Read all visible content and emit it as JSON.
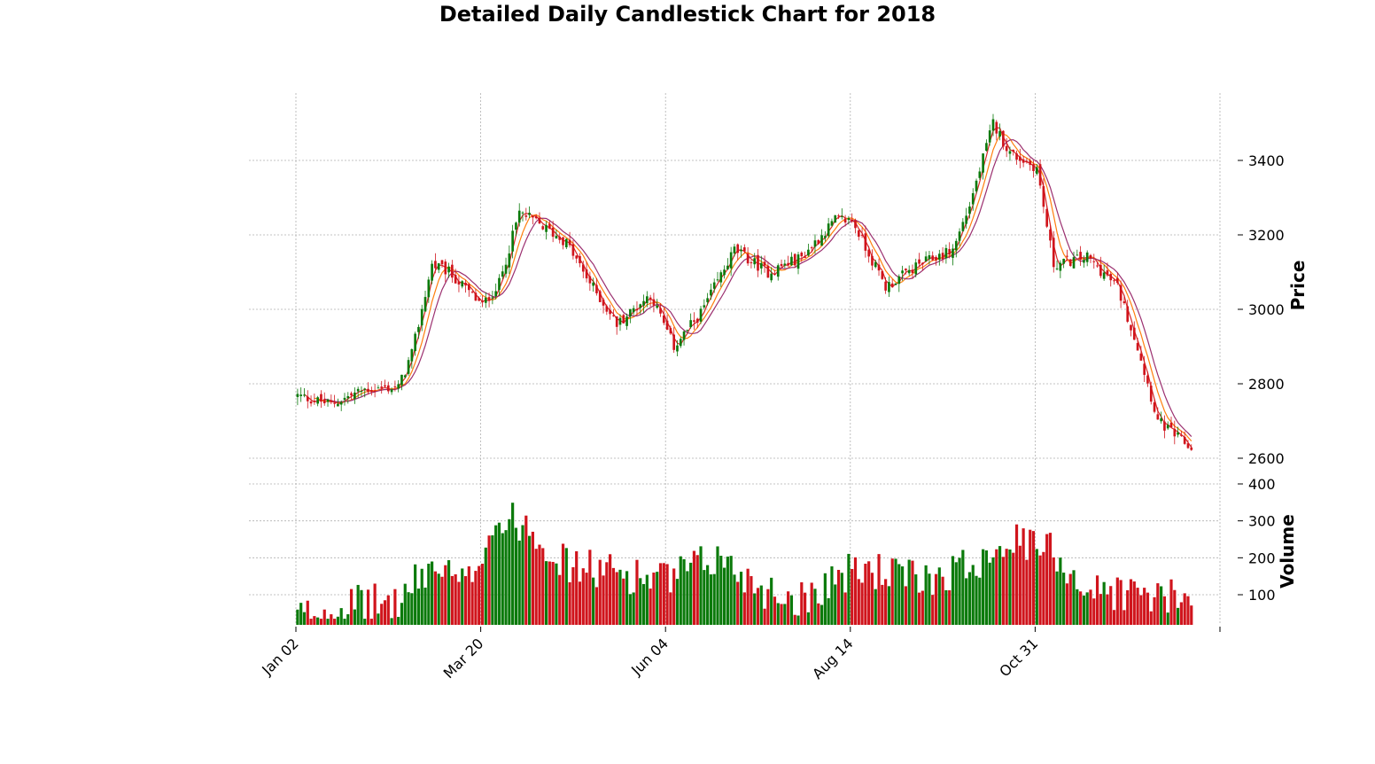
{
  "chart_data": {
    "type": "candlestick",
    "title": "Detailed Daily Candlestick Chart for 2018",
    "price_panel": {
      "ylabel": "Price",
      "yticks": [
        2600,
        2800,
        3000,
        3200,
        3400
      ],
      "ylim": [
        2600,
        3580
      ],
      "grid": true
    },
    "volume_panel": {
      "ylabel": "Volume",
      "yticks": [
        100,
        200,
        300,
        400
      ],
      "ylim": [
        15,
        400
      ],
      "grid": true
    },
    "x_tick_labels": [
      "Jan 02",
      "Mar 20",
      "Jun 04",
      "Aug 14",
      "Oct 31"
    ],
    "x_tick_index": [
      0,
      55,
      110,
      165,
      220
    ],
    "x_range_days": 275,
    "moving_average_colors": [
      "#d62728",
      "#ff7f0e",
      "#9b2f6f"
    ],
    "up_color": "#0b7a0b",
    "down_color": "#d0141c",
    "price_anchors": [
      [
        0,
        2768
      ],
      [
        10,
        2745
      ],
      [
        20,
        2785
      ],
      [
        30,
        2790
      ],
      [
        34,
        2880
      ],
      [
        40,
        3120
      ],
      [
        45,
        3100
      ],
      [
        55,
        3010
      ],
      [
        60,
        3070
      ],
      [
        66,
        3260
      ],
      [
        70,
        3240
      ],
      [
        80,
        3180
      ],
      [
        85,
        3100
      ],
      [
        95,
        2960
      ],
      [
        105,
        3040
      ],
      [
        112,
        2900
      ],
      [
        120,
        2990
      ],
      [
        130,
        3160
      ],
      [
        140,
        3100
      ],
      [
        150,
        3140
      ],
      [
        160,
        3240
      ],
      [
        165,
        3240
      ],
      [
        175,
        3060
      ],
      [
        185,
        3120
      ],
      [
        195,
        3160
      ],
      [
        200,
        3280
      ],
      [
        207,
        3500
      ],
      [
        212,
        3420
      ],
      [
        220,
        3380
      ],
      [
        225,
        3120
      ],
      [
        235,
        3140
      ],
      [
        244,
        3060
      ],
      [
        250,
        2900
      ],
      [
        256,
        2700
      ],
      [
        266,
        2625
      ]
    ],
    "volume_anchors": [
      [
        0,
        40
      ],
      [
        15,
        70
      ],
      [
        30,
        80
      ],
      [
        40,
        180
      ],
      [
        50,
        120
      ],
      [
        58,
        290
      ],
      [
        68,
        300
      ],
      [
        80,
        180
      ],
      [
        95,
        160
      ],
      [
        110,
        140
      ],
      [
        125,
        200
      ],
      [
        140,
        110
      ],
      [
        150,
        90
      ],
      [
        160,
        150
      ],
      [
        170,
        170
      ],
      [
        185,
        140
      ],
      [
        200,
        180
      ],
      [
        210,
        250
      ],
      [
        225,
        220
      ],
      [
        235,
        110
      ],
      [
        245,
        110
      ],
      [
        255,
        95
      ],
      [
        266,
        80
      ]
    ]
  }
}
